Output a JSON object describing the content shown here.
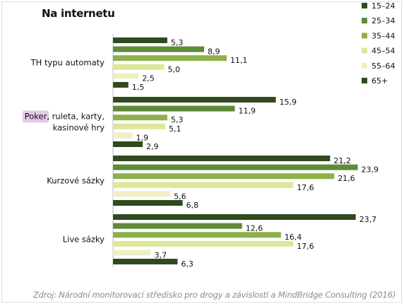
{
  "chart_data": {
    "type": "bar",
    "orientation": "horizontal",
    "title": "Na internetu",
    "categories": [
      "TH typu automaty",
      "Poker, ruleta, karty, kasinové hry",
      "Kurzové sázky",
      "Live sázky"
    ],
    "category_lines": [
      [
        "TH typu automaty"
      ],
      [
        "Poker, ruleta, karty,",
        "kasinové hry"
      ],
      [
        "Kurzové sázky"
      ],
      [
        "Live sázky"
      ]
    ],
    "series": [
      {
        "name": "15–24",
        "color": "#2e4a1f",
        "values": [
          5.3,
          15.9,
          21.2,
          23.7
        ]
      },
      {
        "name": "25–34",
        "color": "#5f8a3a",
        "values": [
          8.9,
          11.9,
          23.9,
          12.6
        ]
      },
      {
        "name": "35–44",
        "color": "#8fb04a",
        "values": [
          11.1,
          5.3,
          21.6,
          16.4
        ]
      },
      {
        "name": "45–54",
        "color": "#dde79a",
        "values": [
          5.0,
          5.1,
          17.6,
          17.6
        ]
      },
      {
        "name": "55–64",
        "color": "#efefc4",
        "values": [
          2.5,
          1.9,
          5.6,
          3.7
        ]
      },
      {
        "name": "65+",
        "color": "#2e4a1f",
        "values": [
          1.5,
          2.9,
          6.8,
          6.3
        ]
      }
    ],
    "value_labels": [
      [
        "5,3",
        "8,9",
        "11,1",
        "5,0",
        "2,5",
        "1,5"
      ],
      [
        "15,9",
        "11,9",
        "5,3",
        "5,1",
        "1,9",
        "2,9"
      ],
      [
        "21,2",
        "23,9",
        "21,6",
        "17,6",
        "5,6",
        "6,8"
      ],
      [
        "23,7",
        "12,6",
        "16,4",
        "17,6",
        "3,7",
        "6,3"
      ]
    ],
    "legend_labels": [
      "15–24",
      "25–34",
      "35–44",
      "45–54",
      "55–64",
      "65+"
    ],
    "legend_position": "top-right",
    "highlight": {
      "category": 1,
      "word": "Poker",
      "color": "#e8c8ec"
    },
    "xlim": [
      0,
      25
    ],
    "grid": false
  },
  "source": "Zdroj: Národní monitorovací středisko pro drogy a závislosti a MindBridge Consulting (2016)"
}
